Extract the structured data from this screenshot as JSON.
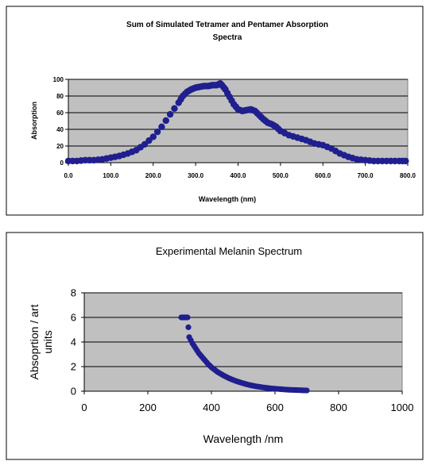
{
  "chart_data": [
    {
      "type": "scatter",
      "title_lines": [
        "Sum of Simulated Tetramer and Pentamer Absorption",
        "Spectra"
      ],
      "xlabel": "Wavelength (nm)",
      "ylabel": "Absorption",
      "xlim": [
        0,
        800
      ],
      "ylim": [
        0,
        100
      ],
      "x_ticks": [
        0,
        100,
        200,
        300,
        400,
        500,
        600,
        700,
        800
      ],
      "x_tick_labels": [
        "0.0",
        "100.0",
        "200.0",
        "300.0",
        "400.0",
        "500.0",
        "600.0",
        "700.0",
        "800.0"
      ],
      "y_ticks": [
        0,
        20,
        40,
        60,
        80,
        100
      ],
      "y_tick_labels": [
        "0",
        "20",
        "40",
        "60",
        "80",
        "100"
      ],
      "grid": "horizontal",
      "legend": "none",
      "plot_bg": "#c0c0c0",
      "marker_color": "#1f1f8f",
      "x": [
        0,
        20,
        40,
        60,
        80,
        100,
        120,
        140,
        160,
        180,
        200,
        220,
        240,
        260,
        270,
        280,
        290,
        300,
        310,
        320,
        330,
        340,
        350,
        358,
        362,
        370,
        380,
        390,
        400,
        410,
        420,
        430,
        440,
        450,
        460,
        470,
        480,
        490,
        500,
        520,
        540,
        560,
        580,
        600,
        620,
        640,
        660,
        680,
        700,
        720,
        740,
        760,
        780,
        795
      ],
      "y": [
        2,
        2,
        3,
        3,
        4,
        6,
        8,
        11,
        15,
        22,
        31,
        43,
        58,
        72,
        80,
        85,
        88,
        90,
        91,
        92,
        92,
        93,
        93,
        95,
        93,
        88,
        79,
        70,
        64,
        62,
        63,
        64,
        62,
        57,
        52,
        48,
        46,
        43,
        38,
        33,
        30,
        27,
        23,
        21,
        17,
        11,
        7,
        4,
        3,
        2,
        2,
        2,
        2,
        2
      ]
    },
    {
      "type": "scatter",
      "title": "Experimental Melanin Spectrum",
      "xlabel": "Wavelength /nm",
      "ylabel_lines": [
        "Absoprtion / art",
        "units"
      ],
      "xlim": [
        0,
        1000
      ],
      "ylim": [
        0,
        8
      ],
      "x_ticks": [
        0,
        200,
        400,
        600,
        800,
        1000
      ],
      "x_tick_labels": [
        "0",
        "200",
        "400",
        "600",
        "800",
        "1000"
      ],
      "y_ticks": [
        0,
        2,
        4,
        6,
        8
      ],
      "y_tick_labels": [
        "0",
        "2",
        "4",
        "6",
        "8"
      ],
      "grid": "horizontal",
      "legend": "none",
      "plot_bg": "#c0c0c0",
      "marker_color": "#1f1f8f",
      "x": [
        305,
        310,
        315,
        320,
        325,
        330,
        340,
        350,
        360,
        370,
        380,
        390,
        400,
        410,
        420,
        430,
        440,
        450,
        460,
        470,
        480,
        490,
        500,
        510,
        520,
        530,
        540,
        550,
        560,
        570,
        580,
        590,
        600,
        610,
        620,
        630,
        640,
        650,
        660,
        670,
        680,
        690,
        700
      ],
      "y": [
        6.0,
        6.0,
        6.0,
        6.0,
        6.0,
        4.4,
        3.9,
        3.5,
        3.1,
        2.8,
        2.5,
        2.2,
        1.95,
        1.75,
        1.55,
        1.4,
        1.25,
        1.12,
        1.0,
        0.9,
        0.8,
        0.72,
        0.64,
        0.57,
        0.5,
        0.45,
        0.4,
        0.36,
        0.32,
        0.28,
        0.25,
        0.22,
        0.2,
        0.18,
        0.16,
        0.14,
        0.12,
        0.11,
        0.1,
        0.09,
        0.08,
        0.07,
        0.06
      ]
    }
  ]
}
